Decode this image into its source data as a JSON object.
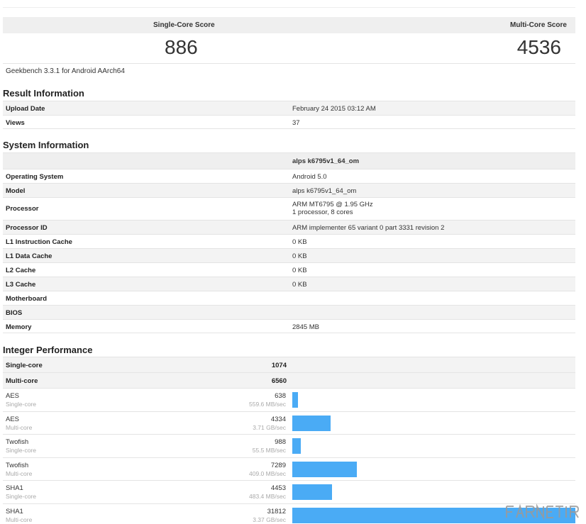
{
  "scores": {
    "single_label": "Single-Core Score",
    "multi_label": "Multi-Core Score",
    "single_value": "886",
    "multi_value": "4536"
  },
  "version": "Geekbench 3.3.1 for Android AArch64",
  "result_info": {
    "title": "Result Information",
    "rows": [
      {
        "key": "Upload Date",
        "value": "February 24 2015 03:12 AM"
      },
      {
        "key": "Views",
        "value": "37"
      }
    ]
  },
  "system_info": {
    "title": "System Information",
    "header_value": "alps k6795v1_64_om",
    "rows": [
      {
        "key": "Operating System",
        "value": "Android 5.0"
      },
      {
        "key": "Model",
        "value": "alps k6795v1_64_om"
      },
      {
        "key": "Processor",
        "value": "ARM MT6795 @ 1.95 GHz",
        "value2": "1 processor, 8 cores"
      },
      {
        "key": "Processor ID",
        "value": "ARM implementer 65 variant 0 part 3331 revision 2"
      },
      {
        "key": "L1 Instruction Cache",
        "value": "0 KB"
      },
      {
        "key": "L1 Data Cache",
        "value": "0 KB"
      },
      {
        "key": "L2 Cache",
        "value": "0 KB"
      },
      {
        "key": "L3 Cache",
        "value": "0 KB"
      },
      {
        "key": "Motherboard",
        "value": ""
      },
      {
        "key": "BIOS",
        "value": ""
      },
      {
        "key": "Memory",
        "value": "2845 MB"
      }
    ]
  },
  "integer_performance": {
    "title": "Integer Performance",
    "summary": [
      {
        "key": "Single-core",
        "value": "1074"
      },
      {
        "key": "Multi-core",
        "value": "6560"
      }
    ],
    "max_score": 31812,
    "benchmarks": [
      {
        "name": "AES",
        "mode": "Single-core",
        "score": 638,
        "score_label": "638",
        "rate": "559.6 MB/sec"
      },
      {
        "name": "AES",
        "mode": "Multi-core",
        "score": 4334,
        "score_label": "4334",
        "rate": "3.71 GB/sec"
      },
      {
        "name": "Twofish",
        "mode": "Single-core",
        "score": 988,
        "score_label": "988",
        "rate": "55.5 MB/sec"
      },
      {
        "name": "Twofish",
        "mode": "Multi-core",
        "score": 7289,
        "score_label": "7289",
        "rate": "409.0 MB/sec"
      },
      {
        "name": "SHA1",
        "mode": "Single-core",
        "score": 4453,
        "score_label": "4453",
        "rate": "483.4 MB/sec"
      },
      {
        "name": "SHA1",
        "mode": "Multi-core",
        "score": 31812,
        "score_label": "31812",
        "rate": "3.37 GB/sec"
      }
    ]
  },
  "watermark": "FARNET.IR",
  "colors": {
    "bar": "#4aabf5",
    "row_alt": "#f3f3f3"
  }
}
